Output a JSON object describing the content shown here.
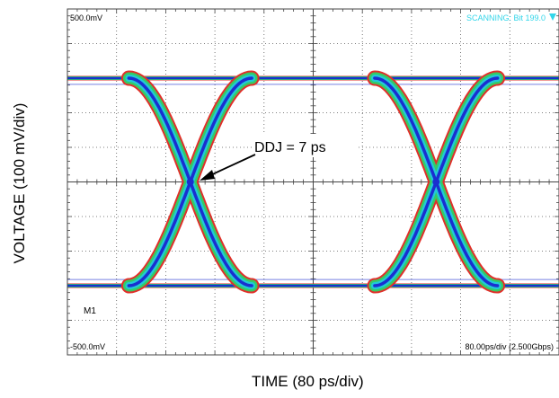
{
  "chart_data": {
    "type": "line",
    "subtype": "eye-diagram",
    "xlabel": "TIME (80 ps/div)",
    "ylabel": "VOLTAGE (100 mV/div)",
    "x_units": "ps",
    "y_units": "mV",
    "xlim": [
      0,
      800
    ],
    "ylim": [
      -500,
      500
    ],
    "x_divisions": 10,
    "y_divisions": 10,
    "grid": true,
    "unit_interval_ps": 400,
    "high_level_mV": 300,
    "low_level_mV": -300,
    "crossing_level_mV": 0,
    "crossings_ps": [
      200,
      600
    ],
    "transition_half_width_ps": 100,
    "annotations": {
      "top_left": "500.0mV",
      "bottom_left": "-500.0mV",
      "top_right": "SCANNING: Bit 199.0",
      "bottom_right": "80.00ps/div (2.500Gbps)",
      "marker": "M1",
      "callout": "DDJ = 7 ps"
    },
    "colors": {
      "outer": "#e0302a",
      "middle": "#33cc66",
      "inner": "#22c8d8",
      "core": "#1a2fd0",
      "status_text": "#33d6ea",
      "grid": "#333333"
    }
  }
}
